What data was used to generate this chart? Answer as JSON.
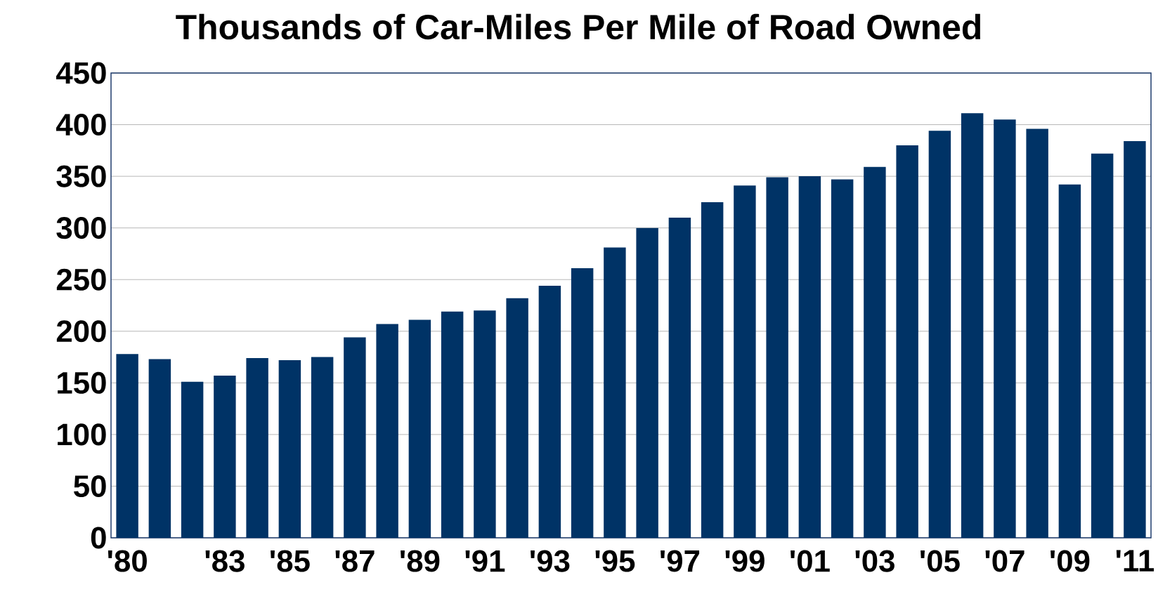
{
  "chart_data": {
    "type": "bar",
    "title": "Thousands of Car-Miles Per Mile of Road Owned",
    "categories": [
      "'80",
      null,
      null,
      "'83",
      null,
      "'85",
      null,
      "'87",
      null,
      "'89",
      null,
      "'91",
      null,
      "'93",
      null,
      "'95",
      null,
      "'97",
      null,
      "'99",
      null,
      "'01",
      null,
      "'03",
      null,
      "'05",
      null,
      "'07",
      null,
      "'09",
      null,
      "'11"
    ],
    "values": [
      178,
      173,
      151,
      157,
      174,
      172,
      175,
      194,
      207,
      211,
      219,
      220,
      232,
      244,
      261,
      281,
      300,
      310,
      325,
      341,
      349,
      350,
      347,
      359,
      380,
      394,
      411,
      405,
      396,
      342,
      372,
      384
    ],
    "color": "#003366",
    "ylim": [
      0,
      450
    ],
    "yticks": [
      0,
      50,
      100,
      150,
      200,
      250,
      300,
      350,
      400,
      450
    ],
    "grid": "y"
  }
}
